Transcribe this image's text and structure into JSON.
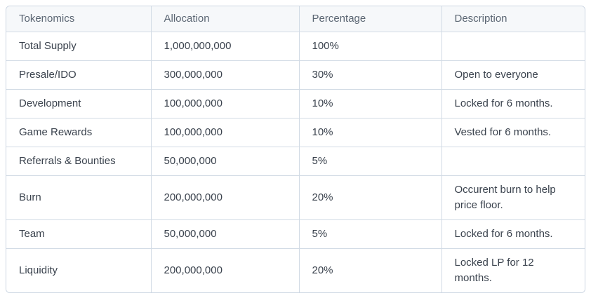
{
  "table": {
    "columns": [
      "Tokenomics",
      "Allocation",
      "Percentage",
      "Description"
    ],
    "rows": [
      {
        "tokenomics": "Total Supply",
        "allocation": "1,000,000,000",
        "percentage": "100%",
        "description": ""
      },
      {
        "tokenomics": "Presale/IDO",
        "allocation": "300,000,000",
        "percentage": "30%",
        "description": "Open to everyone"
      },
      {
        "tokenomics": "Development",
        "allocation": "100,000,000",
        "percentage": "10%",
        "description": "Locked for 6 months."
      },
      {
        "tokenomics": "Game Rewards",
        "allocation": "100,000,000",
        "percentage": "10%",
        "description": "Vested for 6 months."
      },
      {
        "tokenomics": "Referrals & Bounties",
        "allocation": "50,000,000",
        "percentage": "5%",
        "description": ""
      },
      {
        "tokenomics": "Burn",
        "allocation": "200,000,000",
        "percentage": "20%",
        "description": "Occurent burn to help price floor."
      },
      {
        "tokenomics": "Team",
        "allocation": "50,000,000",
        "percentage": "5%",
        "description": "Locked for 6 months."
      },
      {
        "tokenomics": "Liquidity",
        "allocation": "200,000,000",
        "percentage": "20%",
        "description": "Locked LP for 12 months."
      }
    ]
  },
  "colors": {
    "border": "#ccd6e2",
    "inner_border": "#d2dbe5",
    "header_background": "#f6f8fa",
    "header_text": "#5b6673",
    "body_text": "#3a424d"
  }
}
